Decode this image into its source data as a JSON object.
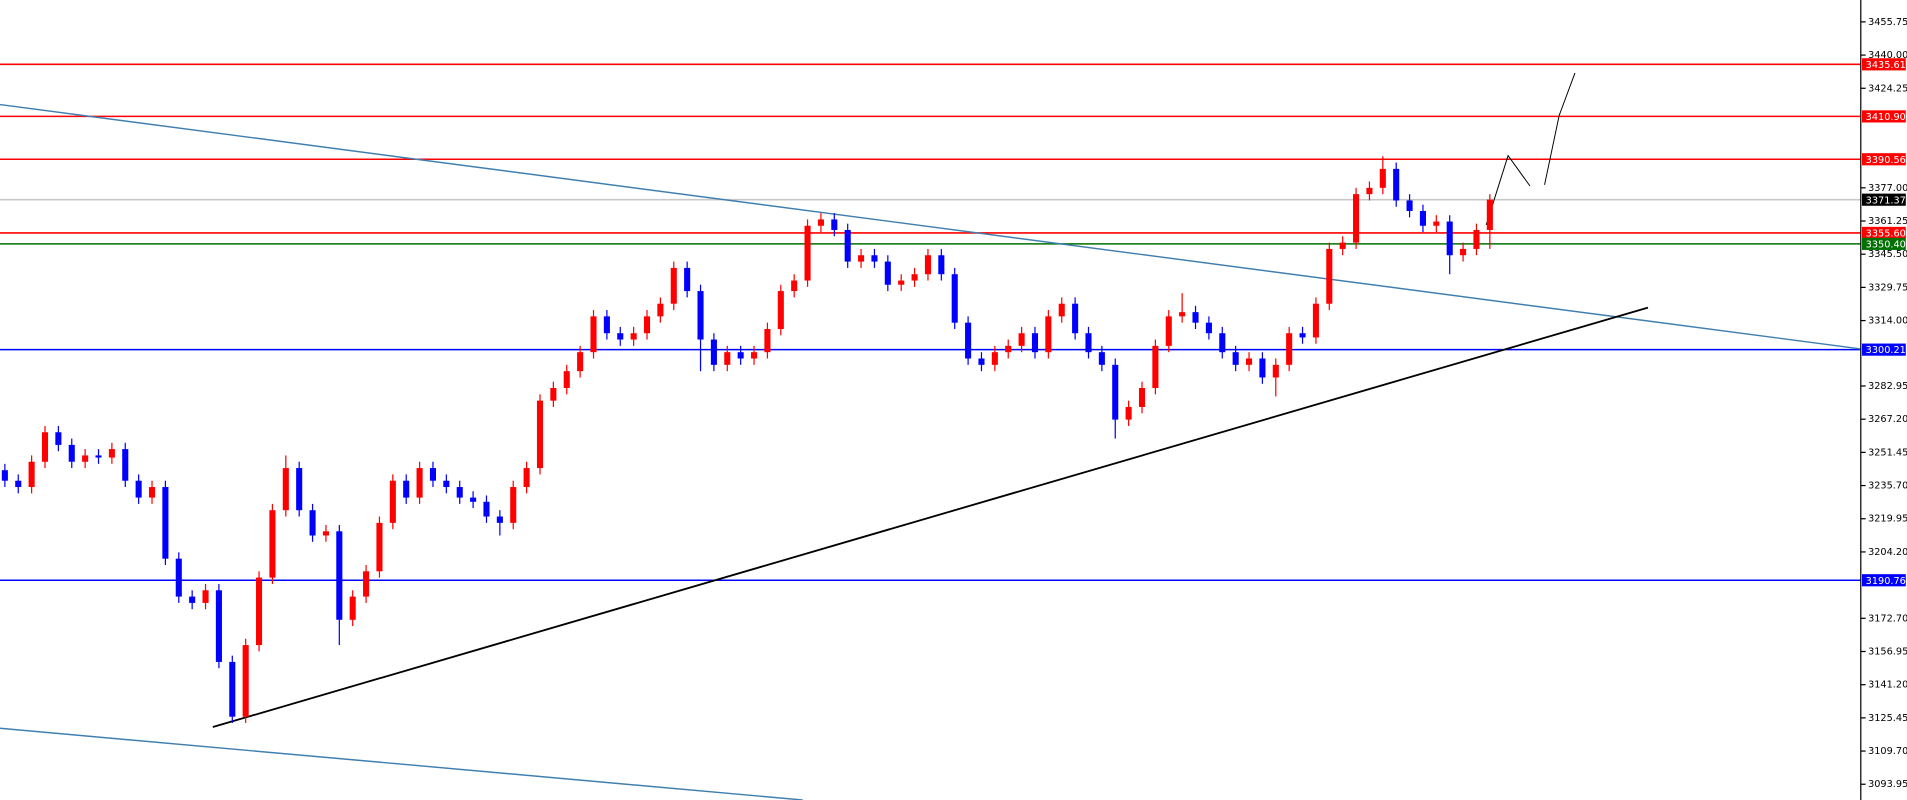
{
  "chart_data": {
    "type": "candlestick",
    "up_color": "#ff0000",
    "down_color": "#0000ff",
    "open": [
      3243,
      3238,
      3235,
      3247,
      3261,
      3255,
      3247,
      3250,
      3249,
      3253,
      3238,
      3230,
      3235,
      3201,
      3183,
      3180,
      3186,
      3152,
      3126,
      3160,
      3192,
      3224,
      3244,
      3224,
      3212,
      3214,
      3172,
      3183,
      3195,
      3218,
      3238,
      3230,
      3244,
      3238,
      3235,
      3230,
      3228,
      3221,
      3218,
      3235,
      3244,
      3276,
      3282,
      3290,
      3299,
      3316,
      3308,
      3305,
      3308,
      3316,
      3322,
      3339,
      3328,
      3305,
      3293,
      3299,
      3296,
      3299,
      3310,
      3328,
      3333,
      3359,
      3362,
      3357,
      3342,
      3345,
      3342,
      3331,
      3333,
      3336,
      3345,
      3336,
      3313,
      3296,
      3293,
      3299,
      3302,
      3308,
      3299,
      3316,
      3322,
      3308,
      3299,
      3293,
      3267,
      3273,
      3282,
      3302,
      3316,
      3318,
      3313,
      3308,
      3299,
      3293,
      3296,
      3287,
      3293,
      3308,
      3306,
      3322,
      3348,
      3351,
      3374,
      3377,
      3386,
      3371,
      3366,
      3359,
      3361,
      3345,
      3348,
      3357
    ],
    "high": [
      3246,
      3241,
      3250,
      3264,
      3264,
      3258,
      3253,
      3253,
      3256,
      3256,
      3241,
      3238,
      3238,
      3204,
      3186,
      3189,
      3189,
      3155,
      3163,
      3195,
      3227,
      3250,
      3247,
      3227,
      3217,
      3217,
      3186,
      3198,
      3221,
      3241,
      3241,
      3247,
      3247,
      3241,
      3238,
      3233,
      3231,
      3224,
      3238,
      3247,
      3279,
      3285,
      3293,
      3302,
      3319,
      3319,
      3311,
      3311,
      3319,
      3325,
      3342,
      3342,
      3331,
      3308,
      3302,
      3302,
      3302,
      3313,
      3331,
      3336,
      3362,
      3365,
      3365,
      3360,
      3348,
      3348,
      3345,
      3336,
      3339,
      3348,
      3348,
      3339,
      3316,
      3299,
      3302,
      3305,
      3311,
      3311,
      3319,
      3325,
      3325,
      3311,
      3302,
      3296,
      3276,
      3285,
      3305,
      3319,
      3327,
      3321,
      3316,
      3311,
      3302,
      3299,
      3299,
      3296,
      3311,
      3311,
      3325,
      3351,
      3354,
      3377,
      3380,
      3392,
      3389,
      3374,
      3369,
      3364,
      3364,
      3351,
      3360,
      3374
    ],
    "low": [
      3235,
      3232,
      3232,
      3244,
      3252,
      3244,
      3244,
      3246,
      3246,
      3235,
      3227,
      3227,
      3198,
      3180,
      3177,
      3177,
      3149,
      3123,
      3123,
      3157,
      3189,
      3221,
      3221,
      3209,
      3209,
      3160,
      3169,
      3180,
      3192,
      3215,
      3227,
      3227,
      3235,
      3232,
      3227,
      3225,
      3218,
      3212,
      3215,
      3232,
      3241,
      3273,
      3279,
      3287,
      3296,
      3305,
      3302,
      3302,
      3305,
      3313,
      3319,
      3325,
      3290,
      3290,
      3290,
      3293,
      3293,
      3296,
      3307,
      3325,
      3330,
      3356,
      3354,
      3339,
      3339,
      3339,
      3328,
      3328,
      3330,
      3333,
      3333,
      3310,
      3293,
      3290,
      3290,
      3296,
      3299,
      3296,
      3296,
      3313,
      3305,
      3296,
      3290,
      3258,
      3264,
      3270,
      3279,
      3299,
      3313,
      3310,
      3305,
      3296,
      3290,
      3290,
      3284,
      3278,
      3290,
      3303,
      3303,
      3319,
      3345,
      3348,
      3371,
      3374,
      3368,
      3363,
      3356,
      3356,
      3336,
      3342,
      3345,
      3348
    ],
    "close": [
      3238,
      3235,
      3247,
      3261,
      3255,
      3247,
      3250,
      3249,
      3253,
      3238,
      3230,
      3235,
      3201,
      3183,
      3180,
      3186,
      3152,
      3126,
      3160,
      3192,
      3224,
      3244,
      3224,
      3212,
      3214,
      3172,
      3183,
      3195,
      3218,
      3238,
      3230,
      3244,
      3238,
      3235,
      3230,
      3228,
      3221,
      3218,
      3235,
      3244,
      3276,
      3282,
      3290,
      3299,
      3316,
      3308,
      3305,
      3308,
      3316,
      3322,
      3339,
      3328,
      3305,
      3293,
      3299,
      3296,
      3299,
      3310,
      3328,
      3333,
      3359,
      3362,
      3357,
      3342,
      3345,
      3342,
      3331,
      3333,
      3336,
      3345,
      3336,
      3313,
      3296,
      3293,
      3299,
      3302,
      3308,
      3299,
      3316,
      3322,
      3308,
      3299,
      3293,
      3267,
      3273,
      3282,
      3302,
      3316,
      3318,
      3313,
      3308,
      3299,
      3293,
      3296,
      3287,
      3293,
      3308,
      3306,
      3322,
      3348,
      3351,
      3374,
      3377,
      3386,
      3371,
      3366,
      3359,
      3361,
      3345,
      3348,
      3357,
      3371.4
    ],
    "ylim": [
      3086.47,
      3466.14
    ],
    "yticks": [
      3455.75,
      {
        "value": 3440,
        "label": "3440.00"
      },
      3424.25,
      {
        "value": 3377,
        "label": "3377.00"
      },
      3361.25,
      {
        "value": 3345.5,
        "label": "3345.50"
      },
      3329.75,
      {
        "value": 3314,
        "label": "3314.00"
      },
      3282.95,
      {
        "value": 3267.2,
        "label": "3267.20"
      },
      3251.45,
      {
        "value": 3235.7,
        "label": "3235.70"
      },
      3219.95,
      {
        "value": 3204.2,
        "label": "3204.20"
      },
      {
        "value": 3172.7,
        "label": "3172.70"
      },
      3156.95,
      {
        "value": 3141.2,
        "label": "3141.20"
      },
      3125.45,
      {
        "value": 3109.7,
        "label": "3109.70"
      },
      3093.95
    ],
    "levels": [
      {
        "value": 3435.61,
        "color": "#ff0000"
      },
      {
        "value": 3410.9,
        "label": "3410.90",
        "color": "#ff0000"
      },
      {
        "value": 3390.56,
        "color": "#ff0000"
      },
      {
        "value": 3371.37,
        "color": "#c8c8c8",
        "tag_color": "#000000"
      },
      {
        "value": 3355.6,
        "label": "3355.60",
        "color": "#ff0000"
      },
      {
        "value": 3350.4,
        "label": "3350.40",
        "color": "#007000"
      },
      {
        "value": 3300.21,
        "color": "#0000ff"
      },
      {
        "value": 3190.76,
        "color": "#0000ff"
      }
    ]
  }
}
